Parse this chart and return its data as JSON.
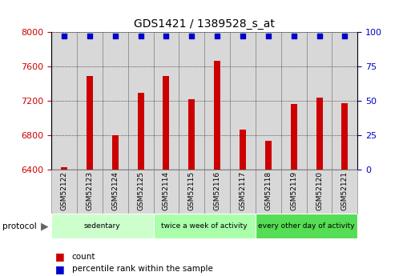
{
  "title": "GDS1421 / 1389528_s_at",
  "samples": [
    "GSM52122",
    "GSM52123",
    "GSM52124",
    "GSM52125",
    "GSM52114",
    "GSM52115",
    "GSM52116",
    "GSM52117",
    "GSM52118",
    "GSM52119",
    "GSM52120",
    "GSM52121"
  ],
  "counts": [
    6430,
    7490,
    6800,
    7290,
    7490,
    7220,
    7660,
    6870,
    6740,
    7160,
    7240,
    7170
  ],
  "percentile_value": 97,
  "ylim_left": [
    6400,
    8000
  ],
  "ylim_right": [
    0,
    100
  ],
  "yticks_left": [
    6400,
    6800,
    7200,
    7600,
    8000
  ],
  "yticks_right": [
    0,
    25,
    50,
    75,
    100
  ],
  "bar_color": "#cc0000",
  "dot_color": "#0000cc",
  "groups": [
    {
      "label": "sedentary",
      "start": 0,
      "end": 4,
      "color": "#ccffcc"
    },
    {
      "label": "twice a week of activity",
      "start": 4,
      "end": 8,
      "color": "#aaffaa"
    },
    {
      "label": "every other day of activity",
      "start": 8,
      "end": 12,
      "color": "#55dd55"
    }
  ],
  "legend_count_label": "count",
  "legend_pct_label": "percentile rank within the sample",
  "protocol_label": "protocol",
  "axis_color_left": "#cc0000",
  "axis_color_right": "#0000cc",
  "col_bg_color": "#d8d8d8",
  "col_border_color": "#888888"
}
